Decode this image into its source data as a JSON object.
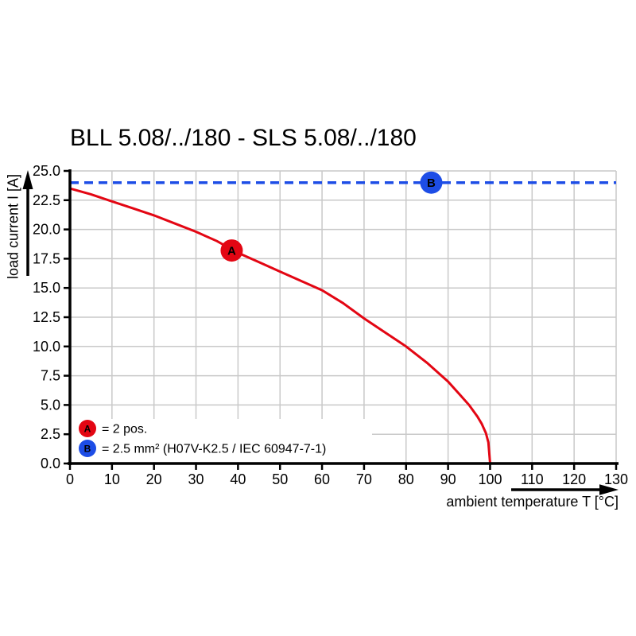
{
  "chart": {
    "title": "BLL 5.08/../180 - SLS 5.08/../180",
    "y_axis": {
      "label": "load current I [A]",
      "tick_labels": [
        "0.0",
        "2.5",
        "5.0",
        "7.5",
        "10.0",
        "12.5",
        "15.0",
        "17.5",
        "20.0",
        "22.5",
        "25.0"
      ]
    },
    "x_axis": {
      "label": "ambient temperature T [°C]",
      "tick_labels": [
        "0",
        "10",
        "20",
        "30",
        "40",
        "50",
        "60",
        "70",
        "80",
        "90",
        "100",
        "110",
        "120",
        "130"
      ]
    }
  },
  "colors": {
    "curve_red": "#e30613",
    "line_blue": "#1d4de6",
    "grid": "#c9c9c9",
    "axis": "#000000",
    "background": "#ffffff"
  },
  "chart_data": {
    "type": "line",
    "title": "BLL 5.08/../180 - SLS 5.08/../180",
    "xlabel": "ambient temperature T [°C]",
    "ylabel": "load current I [A]",
    "xlim": [
      0,
      130
    ],
    "ylim": [
      0,
      25
    ],
    "x_tick_step": 10,
    "y_tick_step": 2.5,
    "grid": true,
    "legend_position": "bottom-left-inside",
    "series": [
      {
        "name": "A",
        "style": "solid",
        "color": "#e30613",
        "points": [
          [
            0,
            23.5
          ],
          [
            5,
            23.0
          ],
          [
            10,
            22.4
          ],
          [
            15,
            21.8
          ],
          [
            20,
            21.2
          ],
          [
            25,
            20.5
          ],
          [
            30,
            19.8
          ],
          [
            35,
            19.0
          ],
          [
            40,
            18.0
          ],
          [
            45,
            17.2
          ],
          [
            50,
            16.4
          ],
          [
            55,
            15.6
          ],
          [
            60,
            14.8
          ],
          [
            65,
            13.7
          ],
          [
            70,
            12.4
          ],
          [
            75,
            11.2
          ],
          [
            80,
            10.0
          ],
          [
            85,
            8.6
          ],
          [
            90,
            7.0
          ],
          [
            93,
            5.8
          ],
          [
            95,
            5.0
          ],
          [
            97,
            4.0
          ],
          [
            98,
            3.4
          ],
          [
            99,
            2.6
          ],
          [
            99.6,
            1.8
          ],
          [
            100,
            0.0
          ]
        ]
      },
      {
        "name": "B",
        "style": "dashed",
        "color": "#1d4de6",
        "points": [
          [
            0,
            24
          ],
          [
            130,
            24
          ]
        ]
      }
    ],
    "markers": [
      {
        "label": "A",
        "x": 38.5,
        "y": 18.2,
        "color": "#e30613"
      },
      {
        "label": "B",
        "x": 86,
        "y": 24,
        "color": "#1d4de6"
      }
    ],
    "legend": [
      {
        "badge": "A",
        "text": "= 2 pos.",
        "color": "#e30613"
      },
      {
        "badge": "B",
        "text": "= 2.5 mm² (H07V-K2.5 / IEC 60947-7-1)",
        "color": "#1d4de6"
      }
    ]
  }
}
